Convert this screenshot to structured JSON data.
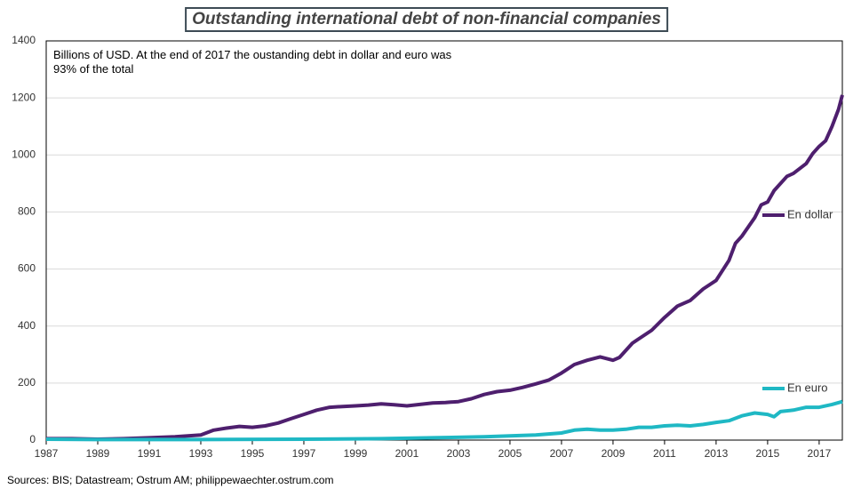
{
  "chart_data": {
    "type": "line",
    "title": "Outstanding international debt of non-financial companies",
    "annotation": "Billions of USD. At the end of 2017 the oustanding debt in dollar and euro was 93% of the total",
    "source": "Sources: BIS; Datastream; Ostrum AM; philippewaechter.ostrum.com",
    "xlim": [
      1987,
      2017.9
    ],
    "ylim": [
      0,
      1400
    ],
    "xticks": [
      1987,
      1989,
      1991,
      1993,
      1995,
      1997,
      1999,
      2001,
      2003,
      2005,
      2007,
      2009,
      2011,
      2013,
      2015,
      2017
    ],
    "yticks": [
      0,
      200,
      400,
      600,
      800,
      1000,
      1200,
      1400
    ],
    "grid": true,
    "series": [
      {
        "name": "En dollar",
        "color": "#4e1f6e",
        "x": [
          1987,
          1988,
          1989,
          1990,
          1991,
          1992,
          1993,
          1993.5,
          1994,
          1994.5,
          1995,
          1995.5,
          1996,
          1996.5,
          1997,
          1997.5,
          1998,
          1998.5,
          1999,
          1999.5,
          2000,
          2000.5,
          2001,
          2001.5,
          2002,
          2002.5,
          2003,
          2003.5,
          2004,
          2004.5,
          2005,
          2005.5,
          2006,
          2006.5,
          2007,
          2007.5,
          2008,
          2008.5,
          2009,
          2009.25,
          2009.75,
          2010,
          2010.5,
          2011,
          2011.5,
          2012,
          2012.5,
          2013,
          2013.5,
          2013.75,
          2014,
          2014.5,
          2014.75,
          2015,
          2015.25,
          2015.75,
          2016,
          2016.5,
          2016.75,
          2017,
          2017.25,
          2017.5,
          2017.75,
          2017.9
        ],
        "values": [
          5,
          5,
          3,
          5,
          8,
          12,
          18,
          35,
          42,
          48,
          45,
          50,
          60,
          75,
          90,
          105,
          115,
          118,
          120,
          123,
          127,
          124,
          120,
          125,
          130,
          132,
          135,
          145,
          160,
          170,
          175,
          185,
          197,
          210,
          235,
          265,
          280,
          292,
          280,
          290,
          340,
          355,
          385,
          430,
          470,
          490,
          530,
          560,
          630,
          690,
          715,
          780,
          825,
          835,
          875,
          925,
          935,
          970,
          1005,
          1030,
          1050,
          1100,
          1160,
          1210
        ]
      },
      {
        "name": "En euro",
        "color": "#1fb8c4",
        "x": [
          1987,
          1989,
          1993,
          1997,
          2000,
          2002,
          2004,
          2006,
          2007,
          2007.5,
          2008,
          2008.5,
          2009,
          2009.5,
          2010,
          2010.5,
          2011,
          2011.5,
          2012,
          2012.5,
          2013,
          2013.5,
          2014,
          2014.5,
          2015,
          2015.25,
          2015.5,
          2016,
          2016.5,
          2017,
          2017.5,
          2017.9
        ],
        "values": [
          3,
          2,
          2,
          3,
          5,
          8,
          12,
          18,
          25,
          35,
          38,
          35,
          35,
          38,
          45,
          45,
          50,
          52,
          50,
          55,
          62,
          68,
          85,
          95,
          90,
          82,
          100,
          105,
          115,
          115,
          125,
          135
        ]
      }
    ]
  }
}
